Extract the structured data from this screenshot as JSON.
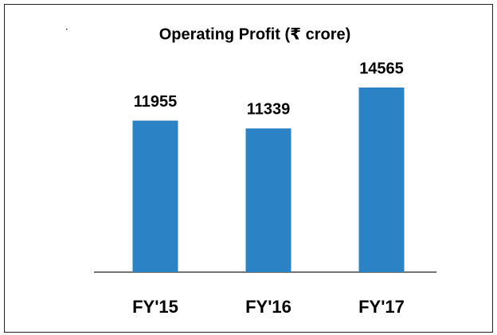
{
  "chart_data": {
    "type": "bar",
    "title": "Operating Profit  (₹ crore)",
    "categories": [
      "FY'15",
      "FY'16",
      "FY'17"
    ],
    "values": [
      11955,
      11339,
      14565
    ],
    "color": "#2b83c6"
  }
}
